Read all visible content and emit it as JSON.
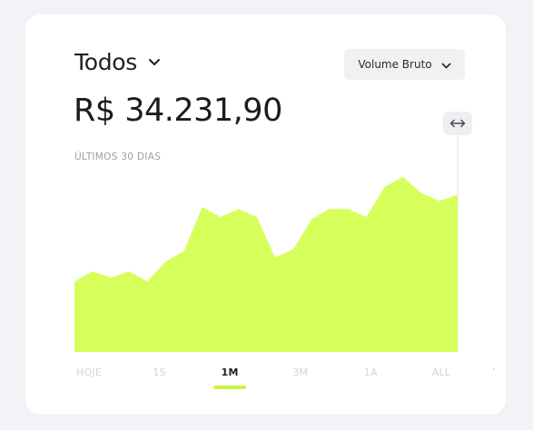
{
  "filter": {
    "label": "Todos"
  },
  "metric_select": {
    "selected": "Volume Bruto"
  },
  "summary": {
    "amount": "R$ 34.231,90",
    "period_label": "ÚLTIMOS 30 DIAS"
  },
  "range_tabs": {
    "items": [
      "HOJE",
      "1S",
      "1M",
      "3M",
      "1A",
      "ALL"
    ],
    "active_index": 2
  },
  "colors": {
    "accent": "#d6ff5c",
    "text_primary": "#1f1f24",
    "text_muted": "#9c9ca6",
    "tab_inactive": "#d4d4da",
    "active_underline": "#c9f542"
  },
  "icons": {
    "filter_chevron": "chevron-down-icon",
    "metric_chevron": "chevron-down-icon",
    "handle": "horizontal-arrows-icon"
  },
  "chart_data": {
    "type": "area",
    "title": "",
    "xlabel": "",
    "ylabel": "",
    "x": [
      1,
      2,
      3,
      4,
      5,
      6,
      7,
      8,
      9,
      10,
      11,
      12,
      13,
      14,
      15,
      16,
      17,
      18,
      19,
      20,
      21,
      22
    ],
    "values": [
      35,
      40,
      37,
      40,
      35,
      45,
      50,
      72,
      67,
      71,
      67,
      47,
      51,
      66,
      71,
      71,
      67,
      82,
      87,
      79,
      75,
      78
    ],
    "ylim": [
      0,
      100
    ],
    "grid": false,
    "legend": "none"
  }
}
